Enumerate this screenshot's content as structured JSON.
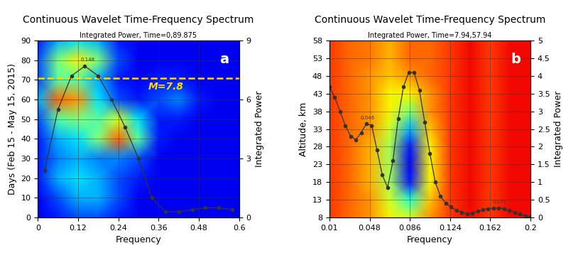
{
  "chart_data": [
    {
      "type": "heatmap_line",
      "title": "Continuous Wavelet Time-Frequency Spectrum",
      "subtitle": "Integrated Power, Time=0,89.875",
      "panel_label": "a",
      "x_label": "Frequency",
      "y_label": "Days (Feb 15 - May 15, 2015)",
      "y2_label": "Integrated Power",
      "xlim": [
        0,
        0.6
      ],
      "xticks": [
        0,
        0.12,
        0.24,
        0.36,
        0.48,
        0.6
      ],
      "ylim": [
        0,
        90
      ],
      "yticks": [
        0,
        10,
        20,
        30,
        40,
        50,
        60,
        70,
        80,
        90
      ],
      "y2lim": [
        0,
        9
      ],
      "y2ticks": [
        0,
        3,
        6,
        9
      ],
      "grid": true,
      "cell_x": [
        0,
        0.06,
        0.12,
        0.18,
        0.24,
        0.3,
        0.36,
        0.42,
        0.48,
        0.54,
        0.6
      ],
      "cell_y": [
        0,
        10,
        20,
        30,
        40,
        50,
        60,
        70,
        80,
        90
      ],
      "color_range": [
        0,
        1
      ],
      "cells": [
        [
          0.1,
          0.15,
          0.2,
          0.2,
          0.15,
          0.1,
          0.1,
          0.1,
          0.1,
          0.1,
          0.1
        ],
        [
          0.1,
          0.2,
          0.3,
          0.3,
          0.2,
          0.1,
          0.1,
          0.1,
          0.1,
          0.1,
          0.1
        ],
        [
          0.15,
          0.3,
          0.35,
          0.3,
          0.2,
          0.15,
          0.1,
          0.1,
          0.1,
          0.1,
          0.1
        ],
        [
          0.15,
          0.25,
          0.3,
          0.25,
          0.25,
          0.2,
          0.1,
          0.1,
          0.1,
          0.1,
          0.1
        ],
        [
          0.15,
          0.3,
          0.35,
          0.5,
          0.8,
          0.45,
          0.15,
          0.1,
          0.1,
          0.1,
          0.1
        ],
        [
          0.2,
          0.45,
          0.5,
          0.45,
          0.6,
          0.35,
          0.15,
          0.15,
          0.1,
          0.1,
          0.1
        ],
        [
          0.3,
          0.8,
          0.75,
          0.35,
          0.2,
          0.15,
          0.2,
          0.25,
          0.15,
          0.1,
          0.1
        ],
        [
          0.2,
          0.45,
          0.45,
          0.3,
          0.15,
          0.1,
          0.15,
          0.15,
          0.1,
          0.1,
          0.1
        ],
        [
          0.2,
          0.5,
          0.65,
          0.5,
          0.2,
          0.1,
          0.1,
          0.1,
          0.1,
          0.1,
          0.1
        ],
        [
          0.15,
          0.3,
          0.35,
          0.3,
          0.15,
          0.1,
          0.1,
          0.1,
          0.1,
          0.1,
          0.1
        ]
      ],
      "reference_line": {
        "value": 71,
        "label": "M=7.8",
        "color": "#ffd700"
      },
      "annotations": [
        {
          "x": 0.148,
          "y": 7.7,
          "text": "0.148"
        }
      ],
      "series": [
        {
          "name": "Integrated Power",
          "color": "#333333",
          "marker": "o",
          "axis": "y2",
          "x": [
            0.02,
            0.06,
            0.1,
            0.14,
            0.18,
            0.22,
            0.26,
            0.3,
            0.34,
            0.38,
            0.42,
            0.46,
            0.5,
            0.54,
            0.58
          ],
          "values": [
            2.4,
            5.5,
            7.2,
            7.7,
            7.2,
            6.0,
            4.6,
            3.0,
            1.0,
            0.3,
            0.3,
            0.4,
            0.5,
            0.5,
            0.4
          ]
        }
      ]
    },
    {
      "type": "heatmap_line",
      "title": "Continuous Wavelet Time-Frequency Spectrum",
      "subtitle": "Integrated Power, Time=7.94,57.94",
      "panel_label": "b",
      "x_label": "Frequency",
      "y_label": "Altitude, km",
      "y2_label": "Integrated Power",
      "xlim": [
        0.01,
        0.2
      ],
      "xticks": [
        0.01,
        0.048,
        0.086,
        0.124,
        0.162,
        0.2
      ],
      "ylim": [
        8,
        58
      ],
      "yticks": [
        8,
        13,
        18,
        23,
        28,
        33,
        38,
        43,
        48,
        53,
        58
      ],
      "y2lim": [
        0,
        5
      ],
      "y2ticks": [
        0,
        0.5,
        1,
        1.5,
        2,
        2.5,
        3,
        3.5,
        4,
        4.5,
        5
      ],
      "grid": true,
      "cell_x": [
        0.01,
        0.029,
        0.048,
        0.067,
        0.086,
        0.105,
        0.124,
        0.143,
        0.162,
        0.181,
        0.2
      ],
      "cell_y": [
        8,
        13,
        18,
        23,
        28,
        33,
        38,
        43,
        48,
        53,
        58
      ],
      "color_range": [
        0,
        1
      ],
      "cells": [
        [
          0.85,
          0.8,
          0.75,
          0.65,
          0.6,
          0.75,
          0.85,
          0.9,
          0.85,
          0.9,
          0.9
        ],
        [
          0.85,
          0.8,
          0.75,
          0.6,
          0.4,
          0.7,
          0.85,
          0.9,
          0.85,
          0.9,
          0.9
        ],
        [
          0.85,
          0.8,
          0.72,
          0.55,
          0.15,
          0.65,
          0.85,
          0.9,
          0.85,
          0.9,
          0.9
        ],
        [
          0.85,
          0.8,
          0.72,
          0.55,
          0.1,
          0.65,
          0.85,
          0.9,
          0.85,
          0.9,
          0.9
        ],
        [
          0.85,
          0.8,
          0.72,
          0.55,
          0.15,
          0.65,
          0.85,
          0.9,
          0.85,
          0.9,
          0.9
        ],
        [
          0.85,
          0.8,
          0.75,
          0.6,
          0.3,
          0.7,
          0.85,
          0.9,
          0.85,
          0.9,
          0.9
        ],
        [
          0.85,
          0.8,
          0.75,
          0.65,
          0.5,
          0.75,
          0.85,
          0.9,
          0.85,
          0.9,
          0.9
        ],
        [
          0.85,
          0.8,
          0.75,
          0.65,
          0.65,
          0.75,
          0.85,
          0.9,
          0.85,
          0.9,
          0.9
        ],
        [
          0.85,
          0.8,
          0.75,
          0.7,
          0.75,
          0.8,
          0.85,
          0.9,
          0.85,
          0.9,
          0.9
        ],
        [
          0.85,
          0.8,
          0.78,
          0.72,
          0.8,
          0.8,
          0.85,
          0.9,
          0.85,
          0.9,
          0.9
        ],
        [
          0.85,
          0.8,
          0.78,
          0.72,
          0.8,
          0.8,
          0.85,
          0.9,
          0.85,
          0.9,
          0.9
        ]
      ],
      "annotations": [
        {
          "x": 0.046,
          "y": 2.65,
          "text": "0.046"
        },
        {
          "x": 0.171,
          "y": 0.27,
          "text": "0.171"
        }
      ],
      "series": [
        {
          "name": "Integrated Power",
          "color": "#333333",
          "marker": "o",
          "axis": "y2",
          "x": [
            0.01,
            0.015,
            0.02,
            0.025,
            0.03,
            0.035,
            0.04,
            0.045,
            0.05,
            0.055,
            0.06,
            0.065,
            0.07,
            0.075,
            0.08,
            0.085,
            0.09,
            0.095,
            0.1,
            0.105,
            0.11,
            0.115,
            0.12,
            0.125,
            0.13,
            0.135,
            0.14,
            0.145,
            0.15,
            0.155,
            0.16,
            0.165,
            0.17,
            0.175,
            0.18,
            0.185,
            0.19,
            0.195,
            0.2
          ],
          "values": [
            3.7,
            3.4,
            3.0,
            2.6,
            2.3,
            2.2,
            2.4,
            2.65,
            2.6,
            1.9,
            1.2,
            0.85,
            1.6,
            2.8,
            3.7,
            4.1,
            4.1,
            3.6,
            2.7,
            1.8,
            1.0,
            0.6,
            0.4,
            0.3,
            0.2,
            0.15,
            0.1,
            0.12,
            0.18,
            0.22,
            0.25,
            0.27,
            0.27,
            0.25,
            0.2,
            0.15,
            0.1,
            0.05,
            0.02
          ]
        }
      ]
    }
  ]
}
